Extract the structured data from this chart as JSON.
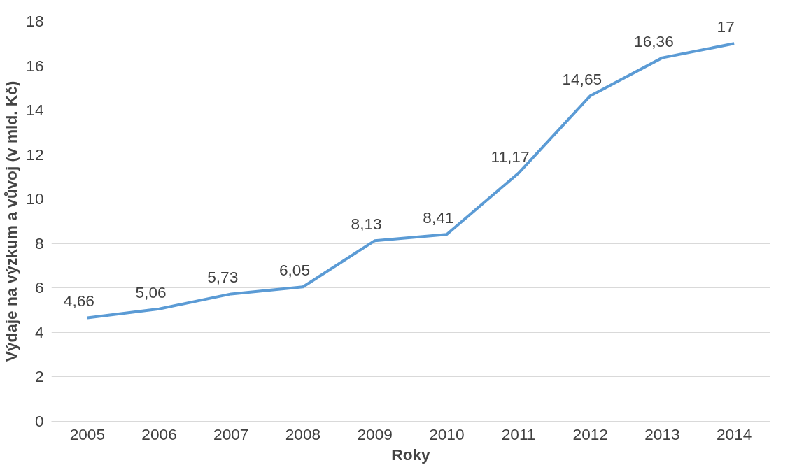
{
  "chart_data": {
    "type": "line",
    "xlabel": "Roky",
    "ylabel": "Výdaje na výzkum a vůvoj (v mld. Kč)",
    "categories": [
      "2005",
      "2006",
      "2007",
      "2008",
      "2009",
      "2010",
      "2011",
      "2012",
      "2013",
      "2014"
    ],
    "series": [
      {
        "color": "#5b9bd5",
        "values": [
          4.66,
          5.06,
          5.73,
          6.05,
          8.13,
          8.41,
          11.17,
          14.65,
          16.36,
          17
        ],
        "value_labels": [
          "4,66",
          "5,06",
          "5,73",
          "6,05",
          "8,13",
          "8,41",
          "11,17",
          "14,65",
          "16,36",
          "17"
        ]
      }
    ],
    "ylim": [
      0,
      18
    ],
    "yticks": [
      0,
      2,
      4,
      6,
      8,
      10,
      12,
      14,
      16,
      18
    ],
    "grid": "y",
    "marker": "none",
    "line_style": "solid"
  }
}
